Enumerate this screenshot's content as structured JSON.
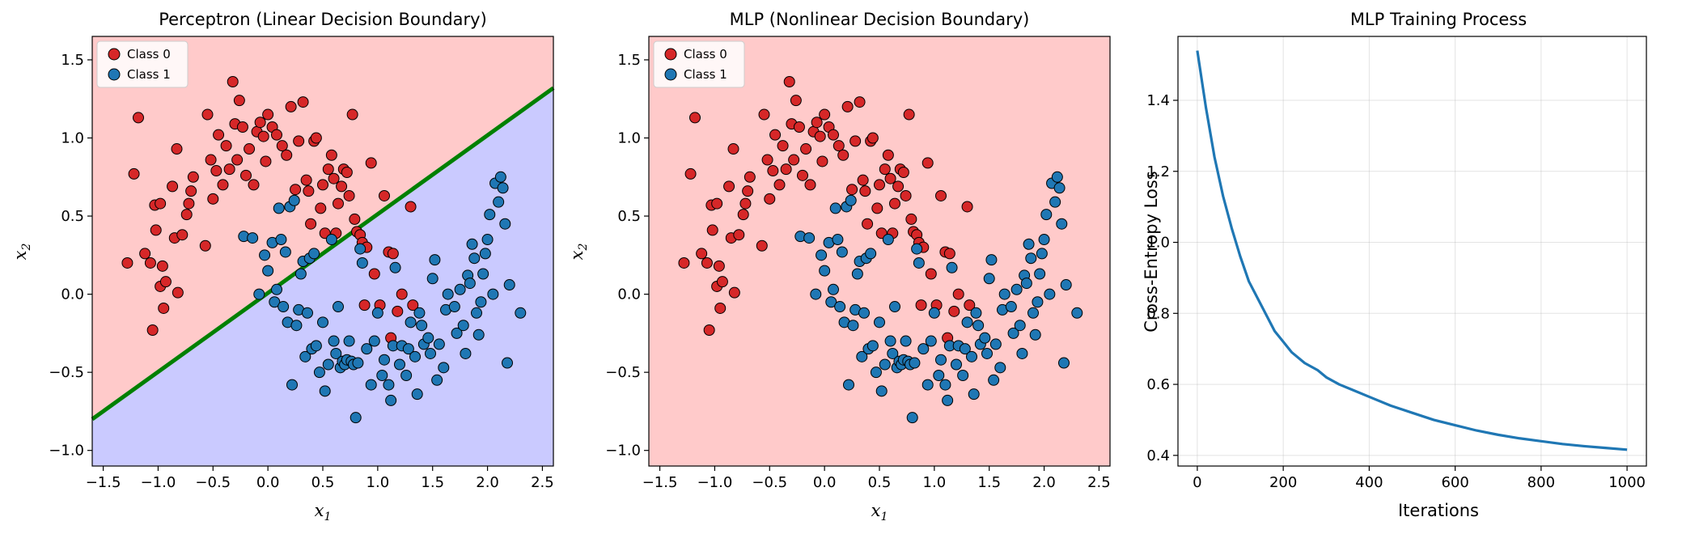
{
  "chart_data": [
    {
      "type": "scatter",
      "title": "Perceptron (Linear Decision Boundary)",
      "xlabel": "x1",
      "ylabel": "x2",
      "xlim": [
        -1.6,
        2.6
      ],
      "ylim": [
        -1.1,
        1.65
      ],
      "xticks": [
        "−1.5",
        "−1.0",
        "−0.5",
        "0.0",
        "0.5",
        "1.0",
        "1.5",
        "2.0",
        "2.5"
      ],
      "yticks": [
        "−1.0",
        "−0.5",
        "0.0",
        "0.5",
        "1.0",
        "1.5"
      ],
      "legend_position": "top-left",
      "legend": [
        "Class 0",
        "Class 1"
      ],
      "background_regions": [
        {
          "name": "Class 0 region",
          "color": "#ffcaca"
        },
        {
          "name": "Class 1 region",
          "color": "#cacaff"
        }
      ],
      "boundary_line": {
        "color": "#008000",
        "points": [
          [
            -1.6,
            -0.8
          ],
          [
            2.6,
            1.32
          ]
        ]
      },
      "series": [
        {
          "name": "Class 0",
          "color": "#d62728",
          "points": []
        },
        {
          "name": "Class 1",
          "color": "#1f77b4",
          "points": []
        }
      ]
    },
    {
      "type": "scatter",
      "title": "MLP (Nonlinear Decision Boundary)",
      "xlabel": "x1",
      "ylabel": "x2",
      "xlim": [
        -1.6,
        2.6
      ],
      "ylim": [
        -1.1,
        1.65
      ],
      "xticks": [
        "−1.5",
        "−1.0",
        "−0.5",
        "0.0",
        "0.5",
        "1.0",
        "1.5",
        "2.0",
        "2.5"
      ],
      "yticks": [
        "−1.0",
        "−0.5",
        "0.0",
        "0.5",
        "1.0",
        "1.5"
      ],
      "legend_position": "top-left",
      "legend": [
        "Class 0",
        "Class 1"
      ],
      "background_regions": [
        {
          "name": "Class 0 region",
          "color": "#ffcaca"
        }
      ],
      "series": [
        {
          "name": "Class 0",
          "color": "#d62728",
          "points": []
        },
        {
          "name": "Class 1",
          "color": "#1f77b4",
          "points": []
        }
      ]
    },
    {
      "type": "line",
      "title": "MLP Training Process",
      "xlabel": "Iterations",
      "ylabel": "Cross-Entropy Loss",
      "xlim": [
        -45,
        1045
      ],
      "ylim": [
        0.37,
        1.58
      ],
      "grid": true,
      "xticks": [
        "0",
        "200",
        "400",
        "600",
        "800",
        "1000"
      ],
      "yticks": [
        "0.4",
        "0.6",
        "0.8",
        "1.0",
        "1.2",
        "1.4"
      ],
      "series": [
        {
          "color": "#1f77b4",
          "x": [
            0,
            20,
            40,
            60,
            80,
            100,
            120,
            150,
            180,
            200,
            220,
            250,
            280,
            300,
            330,
            360,
            400,
            450,
            500,
            550,
            600,
            650,
            700,
            750,
            800,
            850,
            900,
            950,
            1000
          ],
          "y": [
            1.54,
            1.38,
            1.24,
            1.13,
            1.04,
            0.96,
            0.89,
            0.82,
            0.75,
            0.72,
            0.69,
            0.66,
            0.64,
            0.62,
            0.6,
            0.585,
            0.565,
            0.54,
            0.52,
            0.5,
            0.485,
            0.47,
            0.458,
            0.448,
            0.44,
            0.432,
            0.426,
            0.421,
            0.416
          ]
        }
      ]
    }
  ]
}
